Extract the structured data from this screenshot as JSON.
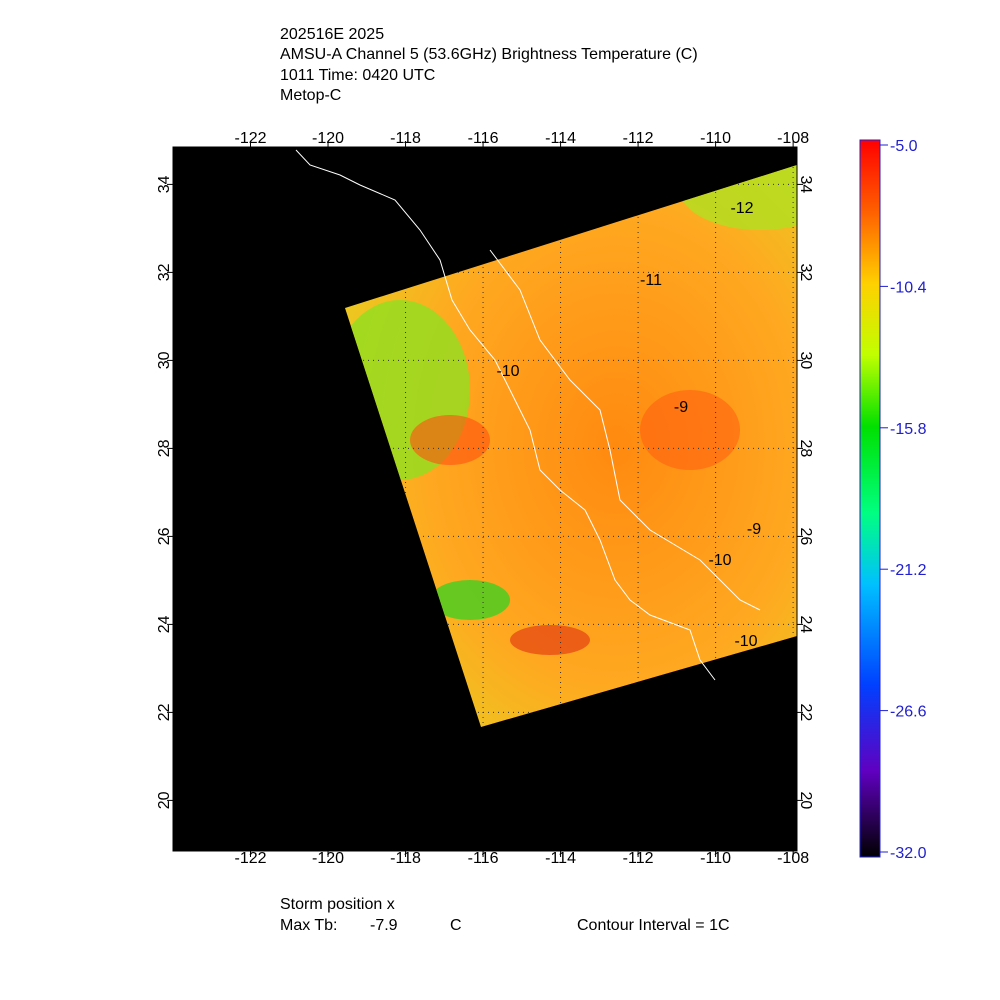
{
  "header": {
    "lines": [
      "202516E 2025",
      "AMSU-A Channel 5 (53.6GHz) Brightness Temperature (C)",
      "1011 Time: 0420 UTC",
      "Metop-C"
    ]
  },
  "map": {
    "lon_lim": [
      -124,
      -107.9
    ],
    "lat_lim": [
      18.85,
      34.85
    ],
    "lon_ticks": [
      -122,
      -120,
      -118,
      -116,
      -114,
      -112,
      -110,
      -108
    ],
    "lat_ticks": [
      20,
      22,
      24,
      26,
      28,
      30,
      32,
      34
    ],
    "grid": true,
    "contour_labels": [
      -12,
      -11,
      -10,
      -9,
      -9,
      -10,
      -10
    ]
  },
  "colorbar": {
    "lim": [
      -32,
      -5
    ],
    "ticks": [
      {
        "value": -5,
        "label": "-5.0"
      },
      -10.4,
      -15.8,
      -21.2,
      -26.6,
      {
        "value": -32,
        "label": "-32.0"
      }
    ]
  },
  "footer": {
    "storm_position": "Storm position x",
    "max_tb_label": "Max Tb:",
    "max_tb": -7.9,
    "unit": "C",
    "contour_interval": "Contour Interval = 1C"
  }
}
